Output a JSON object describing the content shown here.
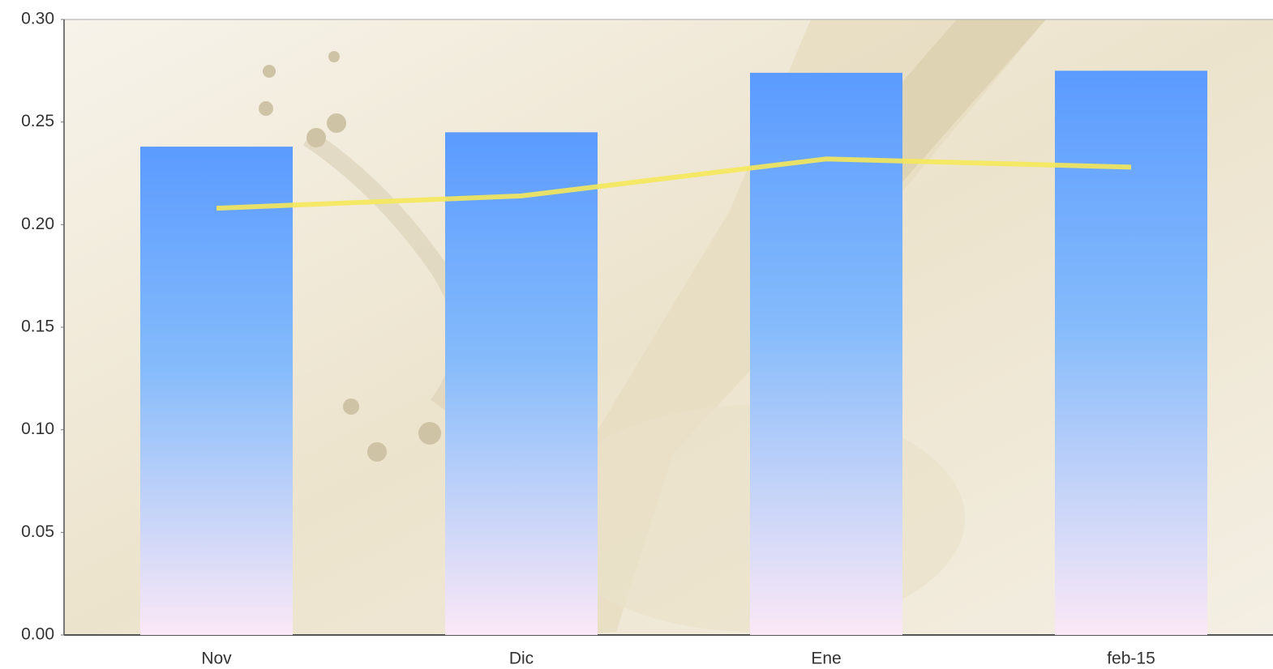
{
  "chart_data": {
    "type": "bar",
    "categories": [
      "Nov",
      "Dic",
      "Ene",
      "feb-15"
    ],
    "series": [
      {
        "type": "bar",
        "color": "#5b9bff",
        "values": [
          0.238,
          0.245,
          0.274,
          0.275
        ]
      },
      {
        "type": "line",
        "color": "#f5e85a",
        "values": [
          0.208,
          0.214,
          0.232,
          0.228
        ]
      }
    ],
    "ylim": [
      0,
      0.3
    ],
    "yticks": [
      {
        "value": 0,
        "label": "0.00"
      },
      {
        "value": 0.05,
        "label": "0.05"
      },
      {
        "value": 0.1,
        "label": "0.10"
      },
      {
        "value": 0.15,
        "label": "0.15"
      },
      {
        "value": 0.2,
        "label": "0.20"
      },
      {
        "value": 0.25,
        "label": "0.25"
      },
      {
        "value": 0.3,
        "label": "0.30"
      }
    ]
  }
}
